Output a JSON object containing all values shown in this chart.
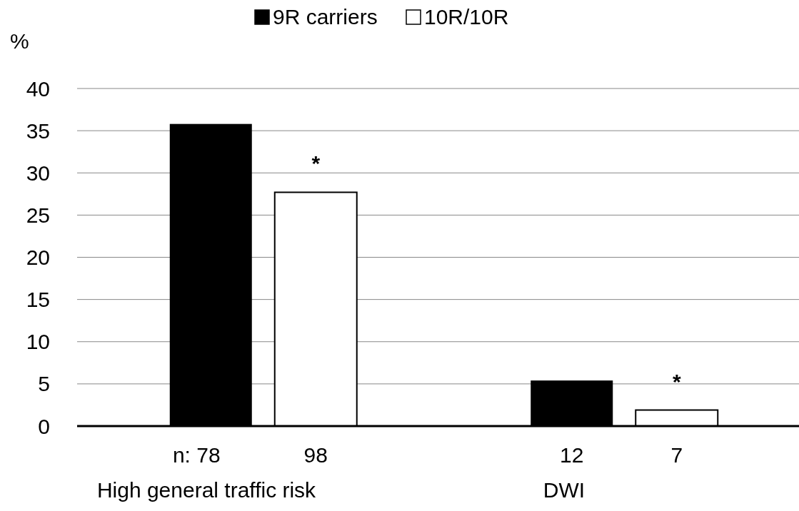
{
  "chart_data": {
    "type": "bar",
    "ylabel": "%",
    "categories": [
      "High general traffic risk",
      "DWI"
    ],
    "series": [
      {
        "name": "9R carriers",
        "color": "#000000",
        "values": [
          35.8,
          5.4
        ]
      },
      {
        "name": "10R/10R",
        "color": "#ffffff",
        "values": [
          27.7,
          1.9
        ]
      }
    ],
    "ylim": [
      0,
      40
    ],
    "yticks": [
      0,
      5,
      10,
      15,
      20,
      25,
      30,
      35,
      40
    ],
    "grid": "y",
    "legend": "top",
    "annotations": [
      "n: 78",
      "98",
      "12",
      "7",
      "*",
      "*"
    ]
  }
}
